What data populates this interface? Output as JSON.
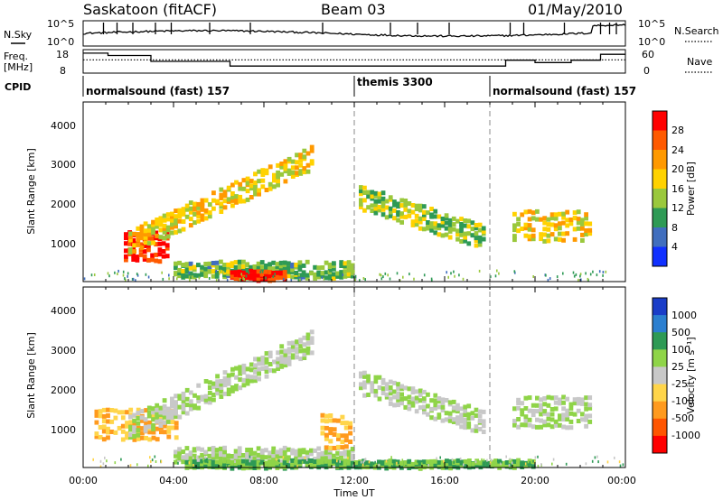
{
  "header": {
    "station": "Saskatoon (fitACF)",
    "beam": "Beam 03",
    "date": "01/May/2010"
  },
  "status_panels": {
    "nsky_label": "N.Sky",
    "nsky_ticks": [
      "10^5",
      "10^0"
    ],
    "nsearch_label": "N.Search",
    "nsearch_ticks": [
      "10^5",
      "10^0"
    ],
    "freq_label_1": "Freq.",
    "freq_label_2": "[MHz]",
    "freq_ticks": [
      "18",
      "8"
    ],
    "nave_label": "Nave",
    "nave_ticks": [
      "60",
      "0"
    ],
    "cpid_label": "CPID",
    "cpid_segments": [
      {
        "start_hour": 0,
        "label": "normalsound (fast) 157"
      },
      {
        "start_hour": 12,
        "label": "themis 3300"
      },
      {
        "start_hour": 18,
        "label": "normalsound (fast) 157"
      }
    ],
    "freq_steps_mhz": [
      {
        "from": 0.0,
        "to": 1.1,
        "value": 16.5
      },
      {
        "from": 1.1,
        "to": 3.0,
        "value": 15.5
      },
      {
        "from": 3.0,
        "to": 6.5,
        "value": 13.0
      },
      {
        "from": 6.5,
        "to": 18.7,
        "value": 11.0
      },
      {
        "from": 18.7,
        "to": 20.0,
        "value": 13.5
      },
      {
        "from": 20.0,
        "to": 21.6,
        "value": 12.5
      },
      {
        "from": 21.6,
        "to": 22.9,
        "value": 13.5
      },
      {
        "from": 22.9,
        "to": 24.0,
        "value": 16.0
      }
    ],
    "nave_dotted_value": 34
  },
  "chart_data": [
    {
      "type": "heatmap",
      "quantity": "Power",
      "xlabel": "",
      "ylabel": "Slant Range [km]",
      "x_range_hours": [
        0,
        24
      ],
      "ylim": [
        200,
        4600
      ],
      "yticks": [
        "4000",
        "3000",
        "2000",
        "1000"
      ],
      "colorbar_label": "Power [dB]",
      "colorbar_ticks": [
        "28",
        "24",
        "20",
        "16",
        "12",
        "8",
        "4"
      ],
      "colorbar_colors": [
        "#ff0000",
        "#ff5a00",
        "#ff9900",
        "#ffd200",
        "#9ac83c",
        "#2e9a55",
        "#406ebe",
        "#1030ff"
      ],
      "features": [
        {
          "name": "morning auroral echoes",
          "start_hour": 1.8,
          "end_hour": 3.8,
          "range_km": [
            700,
            1500
          ],
          "value_db": 27
        },
        {
          "name": "rising arc",
          "start_hour": 2.0,
          "end_hour": 10.2,
          "range_km_start": 1200,
          "range_km_end": 3300,
          "value_db": 16
        },
        {
          "name": "ground scatter band",
          "start_hour": 4.0,
          "end_hour": 12.0,
          "range_km": [
            300,
            700
          ],
          "value_db": 10
        },
        {
          "name": "near-range red patch",
          "start_hour": 6.5,
          "end_hour": 9.0,
          "range_km": [
            250,
            450
          ],
          "value_db": 27
        },
        {
          "name": "post-noon echoes",
          "start_hour": 12.2,
          "end_hour": 17.8,
          "range_km_start": 2300,
          "range_km_end": 1300,
          "value_db": 12
        },
        {
          "name": "evening echoes",
          "start_hour": 19.0,
          "end_hour": 22.5,
          "range_km": [
            1200,
            2000
          ],
          "value_db": 16
        }
      ]
    },
    {
      "type": "heatmap",
      "quantity": "Velocity",
      "xlabel": "Time UT",
      "ylabel": "Slant Range [km]",
      "x_range_hours": [
        0,
        24
      ],
      "xticks": [
        "00:00",
        "04:00",
        "08:00",
        "12:00",
        "16:00",
        "20:00",
        "00:00"
      ],
      "ylim": [
        200,
        4600
      ],
      "yticks": [
        "4000",
        "3000",
        "2000",
        "1000"
      ],
      "colorbar_label": "Velocity [m s⁻¹]",
      "colorbar_ticks": [
        "1000",
        "500",
        "100",
        "25",
        "-25",
        "-100",
        "-500",
        "-1000"
      ],
      "colorbar_colors": [
        "#1a3dc8",
        "#2b7fd0",
        "#2e9a55",
        "#8fd448",
        "#c8c8c8",
        "#ffd54a",
        "#ff9a1e",
        "#ff5500",
        "#ff0000"
      ],
      "features": [
        {
          "name": "morning auroral echoes",
          "start_hour": 0.5,
          "end_hour": 4.2,
          "range_km": [
            900,
            1700
          ],
          "value_ms": -300
        },
        {
          "name": "rising arc",
          "start_hour": 2.0,
          "end_hour": 10.2,
          "range_km_start": 1200,
          "range_km_end": 3300,
          "value_ms": 0
        },
        {
          "name": "ground scatter band",
          "start_hour": 4.0,
          "end_hour": 12.0,
          "range_km": [
            300,
            700
          ],
          "value_ms": 0
        },
        {
          "name": "near-range green fringe",
          "start_hour": 4.5,
          "end_hour": 20.0,
          "range_km": [
            200,
            350
          ],
          "value_ms": 60
        },
        {
          "name": "pre-noon orange arc",
          "start_hour": 10.5,
          "end_hour": 11.9,
          "range_km": [
            700,
            1600
          ],
          "value_ms": -300
        },
        {
          "name": "post-noon echoes",
          "start_hour": 12.2,
          "end_hour": 17.8,
          "range_km_start": 2300,
          "range_km_end": 1300,
          "value_ms": 0
        },
        {
          "name": "evening echoes",
          "start_hour": 19.0,
          "end_hour": 22.5,
          "range_km": [
            1200,
            2000
          ],
          "value_ms": 0
        }
      ]
    }
  ]
}
